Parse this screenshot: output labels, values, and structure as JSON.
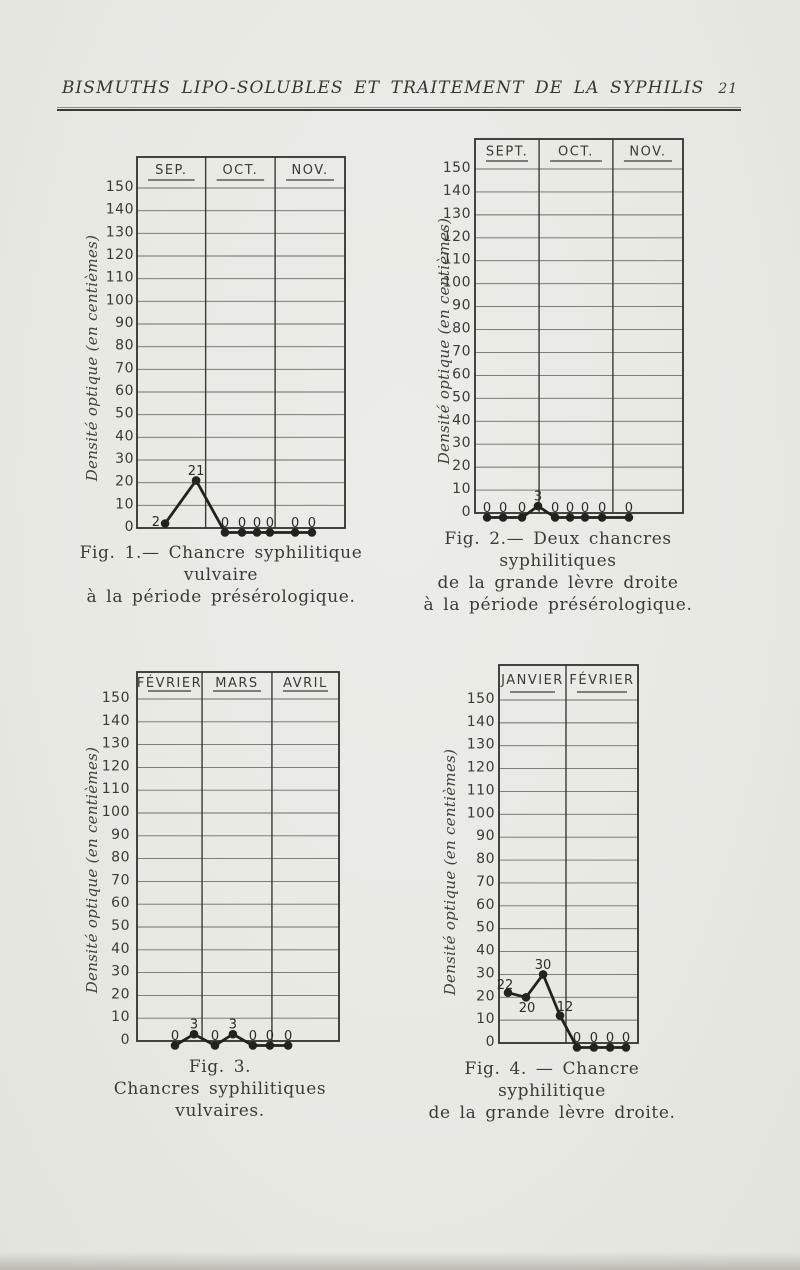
{
  "header": {
    "title": "BISMUTHS LIPO-SOLUBLES ET TRAITEMENT DE LA SYPHILIS",
    "page_number": "21"
  },
  "chart_data": [
    {
      "id": "fig1",
      "type": "line",
      "columns": [
        "SEP.",
        "OCT.",
        "NOV."
      ],
      "ylabel": "Densité optique (en centièmes)",
      "ylim": [
        0,
        150
      ],
      "ytick_step": 10,
      "grid": true,
      "legend": "none",
      "values": [
        2,
        21,
        0,
        0,
        0,
        0,
        0,
        0
      ],
      "points": [
        {
          "x": 0.135,
          "v": 2,
          "label": "2",
          "lpos": "left"
        },
        {
          "x": 0.284,
          "v": 21,
          "label": "21",
          "lpos": "above"
        },
        {
          "x": 0.423,
          "v": 0,
          "label": "0",
          "lpos": "above"
        },
        {
          "x": 0.505,
          "v": 0,
          "label": "0",
          "lpos": "above"
        },
        {
          "x": 0.577,
          "v": 0,
          "label": "0",
          "lpos": "above"
        },
        {
          "x": 0.639,
          "v": 0,
          "label": "0",
          "lpos": "above"
        },
        {
          "x": 0.76,
          "v": 0,
          "label": "0",
          "lpos": "above"
        },
        {
          "x": 0.841,
          "v": 0,
          "label": "0",
          "lpos": "above"
        }
      ],
      "caption": [
        "Fig. 1.— Chancre syphilitique vulvaire",
        "à la période présérologique."
      ]
    },
    {
      "id": "fig2",
      "type": "line",
      "columns": [
        "SEPT.",
        "OCT.",
        "NOV."
      ],
      "ylabel": "Densité optique (en centièmes)",
      "ylim": [
        0,
        150
      ],
      "ytick_step": 10,
      "grid": true,
      "legend": "none",
      "values": [
        0,
        0,
        0,
        3,
        0,
        0,
        0,
        0,
        0
      ],
      "points": [
        {
          "x": 0.058,
          "v": 0,
          "label": "0",
          "lpos": "above"
        },
        {
          "x": 0.135,
          "v": 0,
          "label": "0",
          "lpos": "above"
        },
        {
          "x": 0.226,
          "v": 0,
          "label": "0",
          "lpos": "above"
        },
        {
          "x": 0.303,
          "v": 3,
          "label": "3",
          "lpos": "above"
        },
        {
          "x": 0.385,
          "v": 0,
          "label": "0",
          "lpos": "above"
        },
        {
          "x": 0.457,
          "v": 0,
          "label": "0",
          "lpos": "above"
        },
        {
          "x": 0.529,
          "v": 0,
          "label": "0",
          "lpos": "above"
        },
        {
          "x": 0.611,
          "v": 0,
          "label": "0",
          "lpos": "above"
        },
        {
          "x": 0.74,
          "v": 0,
          "label": "0",
          "lpos": "above"
        }
      ],
      "caption": [
        "Fig. 2.— Deux chancres syphilitiques",
        "de la grande lèvre droite",
        "à la période présérologique."
      ]
    },
    {
      "id": "fig3",
      "type": "line",
      "columns": [
        "FÉVRIER",
        "MARS",
        "AVRIL"
      ],
      "ylabel": "Densité optique (en centièmes)",
      "ylim": [
        0,
        150
      ],
      "ytick_step": 10,
      "grid": true,
      "legend": "none",
      "values": [
        0,
        3,
        0,
        3,
        0,
        0,
        0
      ],
      "points": [
        {
          "x": 0.188,
          "v": 0,
          "label": "0",
          "lpos": "above"
        },
        {
          "x": 0.282,
          "v": 3,
          "label": "3",
          "lpos": "above"
        },
        {
          "x": 0.386,
          "v": 0,
          "label": "0",
          "lpos": "above"
        },
        {
          "x": 0.475,
          "v": 3,
          "label": "3",
          "lpos": "above"
        },
        {
          "x": 0.574,
          "v": 0,
          "label": "0",
          "lpos": "above"
        },
        {
          "x": 0.658,
          "v": 0,
          "label": "0",
          "lpos": "above"
        },
        {
          "x": 0.748,
          "v": 0,
          "label": "0",
          "lpos": "above"
        }
      ],
      "caption": [
        "Fig. 3.",
        "Chancres syphilitiques vulvaires."
      ]
    },
    {
      "id": "fig4",
      "type": "line",
      "columns": [
        "JANVIER",
        "FÉVRIER"
      ],
      "ylabel": "Densité optique (en centièmes)",
      "ylim": [
        0,
        150
      ],
      "ytick_step": 10,
      "grid": true,
      "legend": "none",
      "values": [
        22,
        20,
        30,
        12,
        0,
        0,
        0,
        0
      ],
      "points": [
        {
          "x": 0.065,
          "v": 22,
          "label": "22",
          "lpos": "above-left"
        },
        {
          "x": 0.194,
          "v": 20,
          "label": "20",
          "lpos": "below"
        },
        {
          "x": 0.317,
          "v": 30,
          "label": "30",
          "lpos": "above"
        },
        {
          "x": 0.439,
          "v": 12,
          "label": "12",
          "lpos": "above-right"
        },
        {
          "x": 0.561,
          "v": 0,
          "label": "0",
          "lpos": "above"
        },
        {
          "x": 0.683,
          "v": 0,
          "label": "0",
          "lpos": "above"
        },
        {
          "x": 0.799,
          "v": 0,
          "label": "0",
          "lpos": "above"
        },
        {
          "x": 0.914,
          "v": 0,
          "label": "0",
          "lpos": "above"
        }
      ],
      "caption": [
        "Fig. 4. — Chancre syphilitique",
        "de la grande lèvre droite."
      ]
    }
  ]
}
